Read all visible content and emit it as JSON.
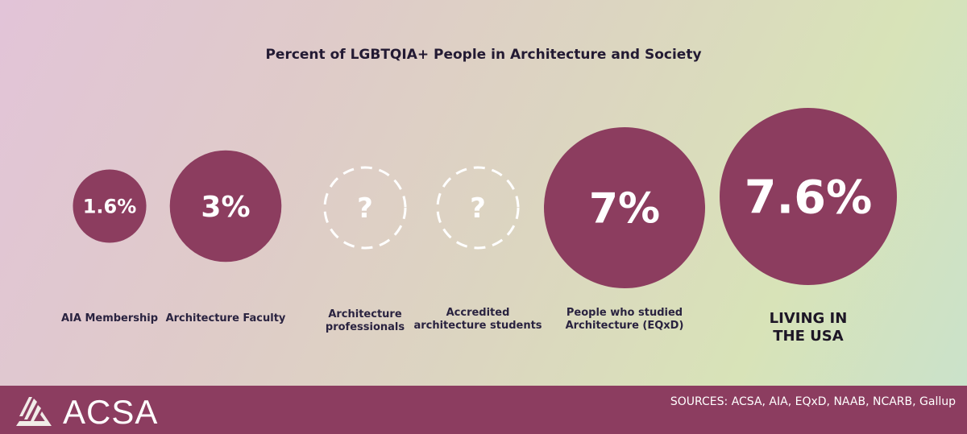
{
  "chart_data": {
    "type": "bubble",
    "title": "Percent of LGBTQIA+ People in Architecture and Society",
    "categories": [
      "AIA Membership",
      "Architecture Faculty",
      "Architecture professionals",
      "Accredited architecture students",
      "People who studied Architecture (EQxD)",
      "LIVING IN THE USA"
    ],
    "values": [
      1.6,
      3,
      null,
      null,
      7,
      7.6
    ],
    "value_labels": [
      "1.6%",
      "3%",
      "?",
      "?",
      "7%",
      "7.6%"
    ],
    "colors": {
      "filled": "#8c3d5f",
      "unknown_outline": "#ffffff"
    }
  },
  "footer": {
    "logo_text": "ACSA",
    "sources": "SOURCES: ACSA, AIA, EQxD, NAAB, NCARB, Gallup"
  }
}
